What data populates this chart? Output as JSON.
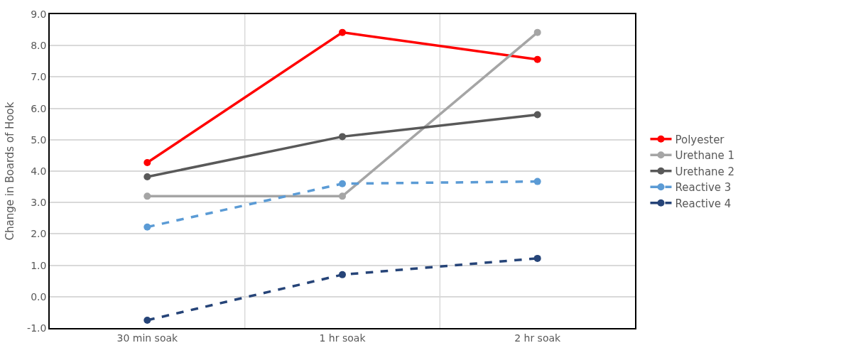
{
  "chart_data": {
    "type": "line",
    "ylabel": "Change in Boards of Hook",
    "categories": [
      "30 min soak",
      "1 hr soak",
      "2 hr soak"
    ],
    "ylim": [
      -1,
      9
    ],
    "yticks": [
      {
        "value": -1,
        "label": "-1.0"
      },
      {
        "value": 0,
        "label": "0.0"
      },
      {
        "value": 1,
        "label": "1.0"
      },
      {
        "value": 2,
        "label": "2.0"
      },
      {
        "value": 3,
        "label": "3.0"
      },
      {
        "value": 4,
        "label": "4.0"
      },
      {
        "value": 5,
        "label": "5.0"
      },
      {
        "value": 6,
        "label": "6.0"
      },
      {
        "value": 7,
        "label": "7.0"
      },
      {
        "value": 8,
        "label": "8.0"
      },
      {
        "value": 9,
        "label": "9.0"
      }
    ],
    "grid": true,
    "legend": "right",
    "marker": "circle",
    "series": [
      {
        "name": "Polyester",
        "color": "#ff0000",
        "values": [
          4.27,
          8.42,
          7.56
        ],
        "line_style": "solid"
      },
      {
        "name": "Urethane 1",
        "color": "#a5a5a5",
        "values": [
          3.2,
          3.2,
          8.42
        ],
        "line_style": "solid"
      },
      {
        "name": "Urethane 2",
        "color": "#595959",
        "values": [
          3.82,
          5.1,
          5.8
        ],
        "line_style": "solid"
      },
      {
        "name": "Reactive 3",
        "color": "#5b9bd5",
        "values": [
          2.22,
          3.6,
          3.67
        ],
        "line_style": "dashed"
      },
      {
        "name": "Reactive 4",
        "color": "#264478",
        "values": [
          -0.75,
          0.7,
          1.22
        ],
        "line_style": "dashed"
      }
    ]
  }
}
